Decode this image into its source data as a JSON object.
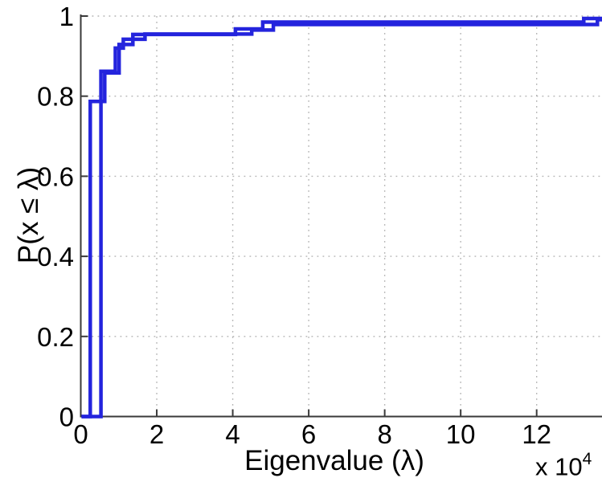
{
  "figure": {
    "background": "#ffffff",
    "offset_label": "x 10",
    "offset_exponent": "4"
  },
  "chart_data": {
    "type": "line",
    "subtype": "step-ecdf",
    "title": "",
    "xlabel": "Eigenvalue (λ)",
    "ylabel": "P(x ≤ λ)",
    "x_axis_multiplier": "x 10^4",
    "xlim": [
      0,
      13.72
    ],
    "ylim": [
      0,
      1
    ],
    "x_ticks": [
      0,
      2,
      4,
      6,
      8,
      10,
      12
    ],
    "x_tick_labels": [
      "0",
      "2",
      "4",
      "6",
      "8",
      "10",
      "12"
    ],
    "y_ticks": [
      0,
      0.2,
      0.4,
      0.6,
      0.8,
      1
    ],
    "y_tick_labels": [
      "0",
      "0.2",
      "0.4",
      "0.6",
      "0.8",
      "1"
    ],
    "grid": "dotted",
    "legend": "none",
    "line_color": "#2424dd",
    "line_width": 4.5,
    "grid_color": "#b3b3b3",
    "axis_color": "#3a3a3a",
    "series": [
      {
        "name": "ecdf-curve-1",
        "start_x": 0.02,
        "end_x": 13.72,
        "jumps": [
          [
            0.25,
            0.787
          ],
          [
            0.53,
            0.862
          ],
          [
            0.91,
            0.92
          ],
          [
            1.12,
            0.942
          ],
          [
            1.69,
            0.955
          ],
          [
            4.5,
            0.965
          ],
          [
            5.07,
            0.979
          ],
          [
            13.6,
            0.991
          ]
        ]
      },
      {
        "name": "ecdf-curve-2",
        "start_x": 0.02,
        "end_x": 13.72,
        "jumps": [
          [
            0.53,
            0.787
          ],
          [
            0.63,
            0.858
          ],
          [
            1.01,
            0.929
          ],
          [
            1.37,
            0.954
          ],
          [
            4.07,
            0.968
          ],
          [
            4.79,
            0.985
          ],
          [
            13.24,
            0.994
          ]
        ]
      }
    ]
  }
}
